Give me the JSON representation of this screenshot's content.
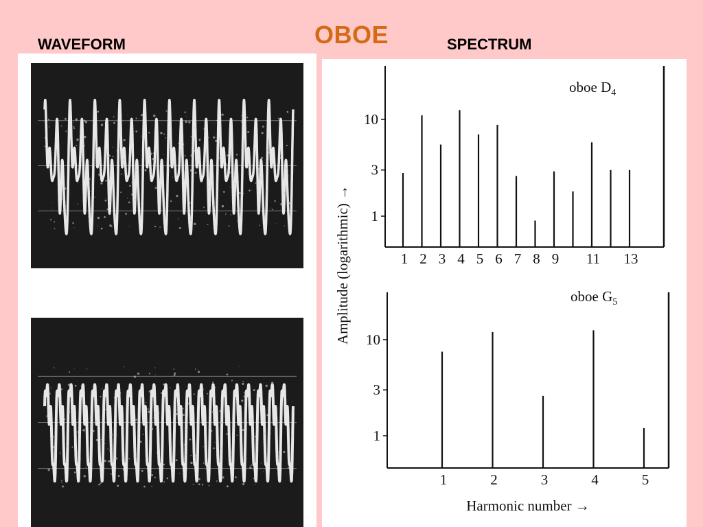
{
  "page": {
    "title": "OBOE",
    "waveform_label": "WAVEFORM",
    "spectrum_label": "SPECTRUM",
    "title_color": "#d46a14",
    "background": "#ffc9c9"
  },
  "chart_data": [
    {
      "type": "bar",
      "title": "oboe D",
      "title_subscript": "4",
      "ylabel": "Amplitude (logarithmic) →",
      "yscale": "log",
      "yticks": [
        1,
        3,
        10
      ],
      "ytick_labels": [
        "1",
        "3",
        "10"
      ],
      "x": [
        1,
        2,
        3,
        4,
        5,
        6,
        7,
        8,
        9,
        10,
        11,
        12,
        13
      ],
      "xtick_labels": [
        "1",
        "2",
        "3",
        "4",
        "5",
        "6",
        "7",
        "8",
        "9",
        "",
        "11",
        "",
        "13"
      ],
      "values": [
        2.8,
        11.0,
        5.5,
        12.5,
        7.0,
        8.8,
        2.6,
        0.9,
        2.9,
        1.8,
        5.8,
        3.0,
        3.0
      ]
    },
    {
      "type": "bar",
      "title": "oboe G",
      "title_subscript": "5",
      "xlabel": "Harmonic number →",
      "yscale": "log",
      "yticks": [
        1,
        3,
        10
      ],
      "ytick_labels": [
        "1",
        "3",
        "10"
      ],
      "x": [
        1,
        2,
        3,
        4,
        5
      ],
      "xtick_labels": [
        "1",
        "2",
        "3",
        "4",
        "5"
      ],
      "values": [
        7.5,
        12.0,
        2.6,
        12.5,
        1.2
      ]
    }
  ],
  "oscilloscope": {
    "top": {
      "cycles": 10
    },
    "bottom": {
      "cycles": 21
    }
  }
}
